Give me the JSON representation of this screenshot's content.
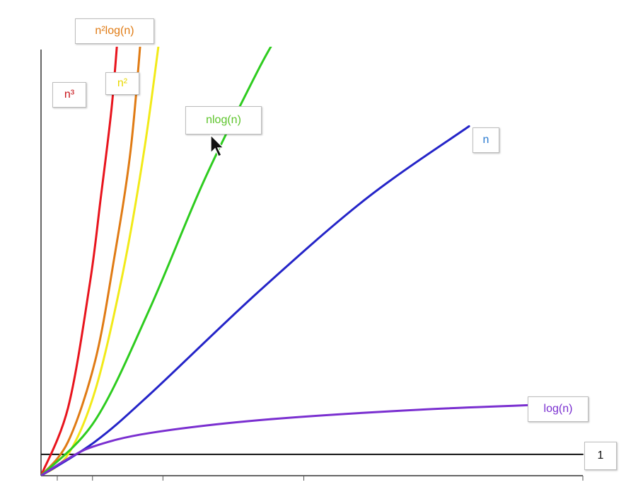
{
  "chart_data": {
    "type": "line",
    "title": "",
    "xlabel": "",
    "ylabel": "",
    "xlim": [
      0,
      10
    ],
    "ylim": [
      0,
      10
    ],
    "grid": false,
    "series": [
      {
        "name": "n³",
        "color": "#e8141d",
        "points": [
          [
            0,
            0
          ],
          [
            0.5,
            1.6
          ],
          [
            0.9,
            4.5
          ],
          [
            1.1,
            6.5
          ],
          [
            1.3,
            8.6
          ],
          [
            1.42,
            10.4
          ]
        ]
      },
      {
        "name": "n²log(n)",
        "color": "#e07b14",
        "points": [
          [
            0,
            0
          ],
          [
            0.5,
            0.8
          ],
          [
            1.0,
            2.7
          ],
          [
            1.35,
            5.1
          ],
          [
            1.65,
            7.6
          ],
          [
            1.85,
            10.4
          ]
        ]
      },
      {
        "name": "n²",
        "color": "#f2ea18",
        "points": [
          [
            0,
            0
          ],
          [
            0.5,
            0.5
          ],
          [
            1.0,
            2.0
          ],
          [
            1.5,
            4.7
          ],
          [
            1.9,
            7.6
          ],
          [
            2.2,
            10.4
          ]
        ]
      },
      {
        "name": "nlog(n)",
        "color": "#2ecc1f",
        "points": [
          [
            0,
            0
          ],
          [
            1.0,
            1.3
          ],
          [
            2.0,
            3.9
          ],
          [
            3.0,
            6.9
          ],
          [
            4.0,
            9.5
          ],
          [
            4.4,
            10.4
          ]
        ]
      },
      {
        "name": "n",
        "color": "#2424c8",
        "points": [
          [
            0,
            0
          ],
          [
            1.0,
            0.8
          ],
          [
            2.0,
            1.9
          ],
          [
            4.0,
            4.3
          ],
          [
            6.0,
            6.5
          ],
          [
            7.9,
            8.2
          ]
        ]
      },
      {
        "name": "log(n)",
        "color": "#7a2fd0",
        "points": [
          [
            0,
            0
          ],
          [
            0.5,
            0.4
          ],
          [
            1.0,
            0.7
          ],
          [
            2.0,
            1.0
          ],
          [
            4.0,
            1.3
          ],
          [
            7.0,
            1.55
          ],
          [
            10.0,
            1.7
          ]
        ]
      },
      {
        "name": "1",
        "color": "#111111",
        "points": [
          [
            0,
            0.5
          ],
          [
            10.0,
            0.5
          ]
        ]
      }
    ]
  },
  "labels": {
    "n3": "n³",
    "n2logn": "n²log(n)",
    "n2": "n²",
    "nlogn": "nlog(n)",
    "n": "n",
    "logn": "log(n)",
    "one": "1"
  }
}
